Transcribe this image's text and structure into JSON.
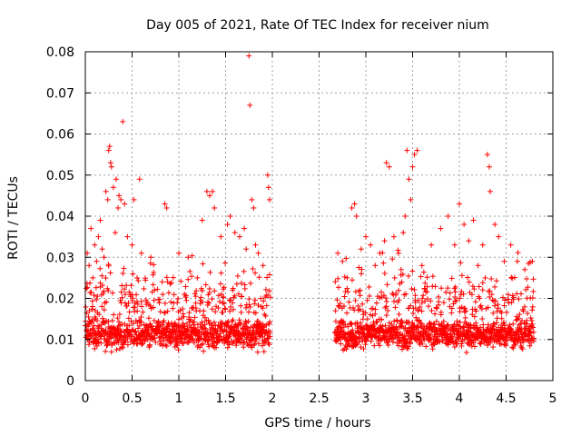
{
  "chart_data": {
    "type": "scatter",
    "title": "Day 005 of 2021, Rate Of TEC Index for receiver nium",
    "xlabel": "GPS time / hours",
    "ylabel": "ROTI / TECUs",
    "xlim": [
      0,
      5
    ],
    "ylim": [
      0,
      0.08
    ],
    "xticks": [
      0,
      0.5,
      1,
      1.5,
      2,
      2.5,
      3,
      3.5,
      4,
      4.5,
      5
    ],
    "xtick_labels": [
      "0",
      "0.5",
      "1",
      "1.5",
      "2",
      "2.5",
      "3",
      "3.5",
      "4",
      "4.5",
      "5"
    ],
    "yticks": [
      0,
      0.01,
      0.02,
      0.03,
      0.04,
      0.05,
      0.06,
      0.07,
      0.08
    ],
    "ytick_labels": [
      "0",
      "0.01",
      "0.02",
      "0.03",
      "0.04",
      "0.05",
      "0.06",
      "0.07",
      "0.08"
    ],
    "grid": true,
    "marker": "+",
    "marker_color": "#ff0000",
    "series": [
      {
        "name": "ROTI",
        "segments": [
          {
            "x_range": [
              0,
              1.98
            ],
            "baseline_mean": 0.0115,
            "baseline_spread": 0.006,
            "elevated_points_ratio": 0.22
          },
          {
            "x_range": [
              2.67,
              4.8
            ],
            "baseline_mean": 0.0115,
            "baseline_spread": 0.006,
            "elevated_points_ratio": 0.22
          }
        ],
        "points": [
          [
            0.02,
            0.031
          ],
          [
            0.04,
            0.028
          ],
          [
            0.06,
            0.037
          ],
          [
            0.08,
            0.025
          ],
          [
            0.1,
            0.033
          ],
          [
            0.12,
            0.029
          ],
          [
            0.14,
            0.035
          ],
          [
            0.16,
            0.039
          ],
          [
            0.18,
            0.032
          ],
          [
            0.2,
            0.03
          ],
          [
            0.22,
            0.046
          ],
          [
            0.24,
            0.044
          ],
          [
            0.25,
            0.056
          ],
          [
            0.26,
            0.057
          ],
          [
            0.27,
            0.053
          ],
          [
            0.28,
            0.052
          ],
          [
            0.3,
            0.047
          ],
          [
            0.32,
            0.036
          ],
          [
            0.33,
            0.049
          ],
          [
            0.35,
            0.042
          ],
          [
            0.36,
            0.045
          ],
          [
            0.38,
            0.044
          ],
          [
            0.4,
            0.063
          ],
          [
            0.42,
            0.043
          ],
          [
            0.45,
            0.035
          ],
          [
            0.5,
            0.033
          ],
          [
            0.52,
            0.044
          ],
          [
            0.58,
            0.049
          ],
          [
            0.6,
            0.031
          ],
          [
            0.7,
            0.03
          ],
          [
            0.85,
            0.043
          ],
          [
            0.87,
            0.042
          ],
          [
            1.0,
            0.031
          ],
          [
            1.1,
            0.03
          ],
          [
            1.25,
            0.039
          ],
          [
            1.3,
            0.046
          ],
          [
            1.33,
            0.045
          ],
          [
            1.36,
            0.046
          ],
          [
            1.38,
            0.042
          ],
          [
            1.45,
            0.035
          ],
          [
            1.52,
            0.038
          ],
          [
            1.55,
            0.04
          ],
          [
            1.6,
            0.036
          ],
          [
            1.65,
            0.035
          ],
          [
            1.7,
            0.037
          ],
          [
            1.72,
            0.032
          ],
          [
            1.75,
            0.079
          ],
          [
            1.76,
            0.067
          ],
          [
            1.78,
            0.044
          ],
          [
            1.8,
            0.042
          ],
          [
            1.82,
            0.033
          ],
          [
            1.85,
            0.031
          ],
          [
            1.9,
            0.028
          ],
          [
            1.95,
            0.05
          ],
          [
            1.96,
            0.047
          ],
          [
            1.97,
            0.044
          ],
          [
            2.7,
            0.031
          ],
          [
            2.75,
            0.029
          ],
          [
            2.8,
            0.025
          ],
          [
            2.85,
            0.042
          ],
          [
            2.88,
            0.043
          ],
          [
            2.9,
            0.04
          ],
          [
            2.95,
            0.032
          ],
          [
            3.0,
            0.035
          ],
          [
            3.05,
            0.033
          ],
          [
            3.1,
            0.028
          ],
          [
            3.15,
            0.031
          ],
          [
            3.2,
            0.034
          ],
          [
            3.22,
            0.053
          ],
          [
            3.25,
            0.052
          ],
          [
            3.3,
            0.035
          ],
          [
            3.35,
            0.031
          ],
          [
            3.4,
            0.036
          ],
          [
            3.42,
            0.04
          ],
          [
            3.44,
            0.056
          ],
          [
            3.46,
            0.049
          ],
          [
            3.48,
            0.044
          ],
          [
            3.5,
            0.052
          ],
          [
            3.52,
            0.055
          ],
          [
            3.55,
            0.056
          ],
          [
            3.6,
            0.028
          ],
          [
            3.7,
            0.033
          ],
          [
            3.8,
            0.037
          ],
          [
            3.88,
            0.04
          ],
          [
            3.95,
            0.033
          ],
          [
            4.0,
            0.043
          ],
          [
            4.05,
            0.038
          ],
          [
            4.1,
            0.034
          ],
          [
            4.15,
            0.039
          ],
          [
            4.2,
            0.028
          ],
          [
            4.25,
            0.033
          ],
          [
            4.3,
            0.055
          ],
          [
            4.32,
            0.052
          ],
          [
            4.33,
            0.046
          ],
          [
            4.38,
            0.038
          ],
          [
            4.42,
            0.035
          ],
          [
            4.48,
            0.029
          ],
          [
            4.55,
            0.033
          ],
          [
            4.62,
            0.029
          ],
          [
            4.7,
            0.027
          ],
          [
            4.78,
            0.029
          ]
        ]
      }
    ]
  }
}
